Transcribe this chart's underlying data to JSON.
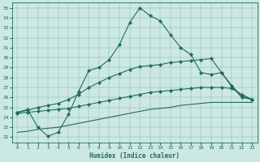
{
  "xlabel": "Humidex (Indice chaleur)",
  "bg_color": "#cce8e4",
  "line_color": "#1f6b5e",
  "xlim": [
    -0.5,
    23.5
  ],
  "ylim": [
    21.5,
    35.5
  ],
  "xticks": [
    0,
    1,
    2,
    3,
    4,
    5,
    6,
    7,
    8,
    9,
    10,
    11,
    12,
    13,
    14,
    15,
    16,
    17,
    18,
    19,
    20,
    21,
    22,
    23
  ],
  "yticks": [
    22,
    23,
    24,
    25,
    26,
    27,
    28,
    29,
    30,
    31,
    32,
    33,
    34,
    35
  ],
  "line1_x": [
    0,
    1,
    2,
    3,
    4,
    5,
    6,
    7,
    8,
    9,
    10,
    11,
    12,
    13,
    14,
    15,
    16,
    17,
    18,
    19,
    20,
    21,
    22,
    23
  ],
  "line1_y": [
    24.5,
    24.8,
    23.0,
    22.1,
    22.5,
    24.3,
    26.6,
    28.7,
    29.0,
    29.8,
    31.3,
    33.5,
    35.0,
    34.2,
    33.7,
    32.3,
    31.0,
    30.3,
    28.5,
    28.3,
    28.5,
    27.1,
    26.0,
    25.8
  ],
  "line2_x": [
    0,
    1,
    2,
    3,
    4,
    5,
    6,
    7,
    8,
    9,
    10,
    11,
    12,
    13,
    14,
    15,
    16,
    17,
    18,
    19,
    20,
    21,
    22,
    23
  ],
  "line2_y": [
    24.5,
    24.7,
    25.0,
    25.2,
    25.4,
    25.8,
    26.3,
    27.0,
    27.5,
    28.0,
    28.4,
    28.8,
    29.1,
    29.2,
    29.3,
    29.5,
    29.6,
    29.7,
    29.8,
    29.9,
    28.5,
    27.2,
    26.1,
    25.8
  ],
  "line3_x": [
    0,
    1,
    2,
    3,
    4,
    5,
    6,
    7,
    8,
    9,
    10,
    11,
    12,
    13,
    14,
    15,
    16,
    17,
    18,
    19,
    20,
    21,
    22,
    23
  ],
  "line3_y": [
    24.4,
    24.5,
    24.6,
    24.7,
    24.8,
    24.9,
    25.1,
    25.3,
    25.5,
    25.7,
    25.9,
    26.1,
    26.3,
    26.5,
    26.6,
    26.7,
    26.8,
    26.9,
    27.0,
    27.0,
    27.0,
    26.9,
    26.3,
    25.8
  ],
  "line4_x": [
    0,
    1,
    2,
    3,
    4,
    5,
    6,
    7,
    8,
    9,
    10,
    11,
    12,
    13,
    14,
    15,
    16,
    17,
    18,
    19,
    20,
    21,
    22,
    23
  ],
  "line4_y": [
    22.5,
    22.6,
    22.8,
    22.9,
    23.0,
    23.2,
    23.4,
    23.6,
    23.8,
    24.0,
    24.2,
    24.4,
    24.6,
    24.8,
    24.9,
    25.0,
    25.2,
    25.3,
    25.4,
    25.5,
    25.5,
    25.5,
    25.5,
    25.5
  ]
}
